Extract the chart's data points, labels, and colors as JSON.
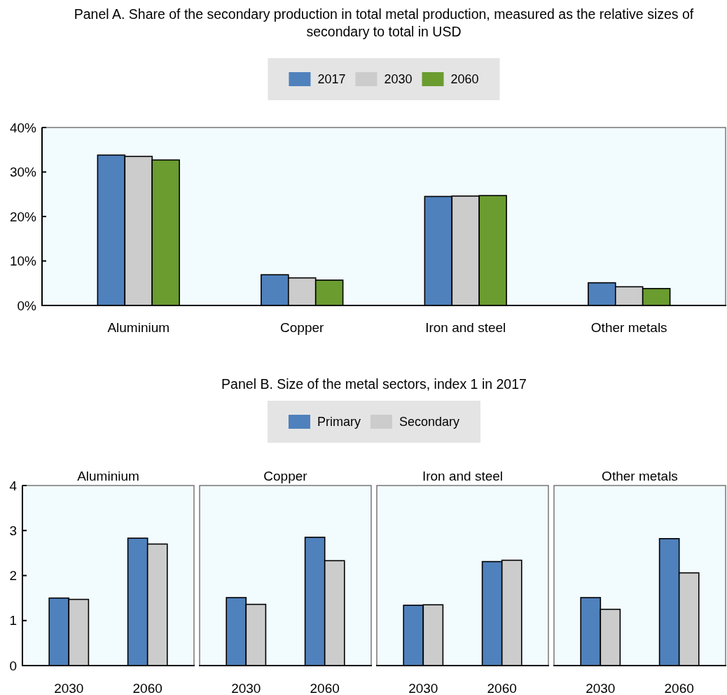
{
  "chart_data": [
    {
      "type": "bar",
      "title": "Panel A. Share of the secondary production in total metal production, measured as the relative sizes of secondary to total in USD",
      "categories": [
        "Aluminium",
        "Copper",
        "Iron and steel",
        "Other metals"
      ],
      "series": [
        {
          "name": "2017",
          "color": "#4f81bd",
          "values": [
            33.8,
            6.9,
            24.5,
            5.1
          ]
        },
        {
          "name": "2030",
          "color": "#cccccc",
          "values": [
            33.5,
            6.2,
            24.6,
            4.2
          ]
        },
        {
          "name": "2060",
          "color": "#6a9c30",
          "values": [
            32.7,
            5.7,
            24.7,
            3.8
          ]
        }
      ],
      "ylim": [
        0,
        40
      ],
      "yticks": [
        {
          "value": 0,
          "label": "0%"
        },
        {
          "value": 10,
          "label": "10%"
        },
        {
          "value": 20,
          "label": "20%"
        },
        {
          "value": 30,
          "label": "30%"
        },
        {
          "value": 40,
          "label": "40%"
        }
      ],
      "legend": "top"
    },
    {
      "type": "other",
      "title": "Panel B. Size of the metal sectors, index 1 in 2017"
    },
    {
      "type": "bar",
      "subtitle": "Aluminium",
      "categories": [
        "2030",
        "2060"
      ],
      "series": [
        {
          "name": "Primary",
          "color": "#4f81bd",
          "values": [
            1.5,
            2.83
          ]
        },
        {
          "name": "Secondary",
          "color": "#cccccc",
          "values": [
            1.47,
            2.7
          ]
        }
      ],
      "ylim": [
        0,
        4
      ],
      "yticks": [
        0,
        1,
        2,
        3,
        4
      ],
      "legend": "top"
    },
    {
      "type": "bar",
      "subtitle": "Copper",
      "categories": [
        "2030",
        "2060"
      ],
      "series": [
        {
          "color": "#4f81bd",
          "values": [
            1.51,
            2.85
          ]
        },
        {
          "color": "#cccccc",
          "values": [
            1.36,
            2.33
          ]
        }
      ],
      "ylim": [
        0,
        4
      ],
      "tick_labels": "x"
    },
    {
      "type": "bar",
      "subtitle": "Iron and steel",
      "categories": [
        "2030",
        "2060"
      ],
      "series": [
        {
          "color": "#4f81bd",
          "values": [
            1.34,
            2.31
          ]
        },
        {
          "color": "#cccccc",
          "values": [
            1.35,
            2.34
          ]
        }
      ],
      "ylim": [
        0,
        4
      ],
      "tick_labels": "x"
    },
    {
      "type": "bar",
      "subtitle": "Other metals",
      "categories": [
        "2030",
        "2060"
      ],
      "series": [
        {
          "color": "#4f81bd",
          "values": [
            1.51,
            2.82
          ]
        },
        {
          "color": "#cccccc",
          "values": [
            1.25,
            2.06
          ]
        }
      ],
      "ylim": [
        0,
        4
      ],
      "tick_labels": "x"
    }
  ]
}
